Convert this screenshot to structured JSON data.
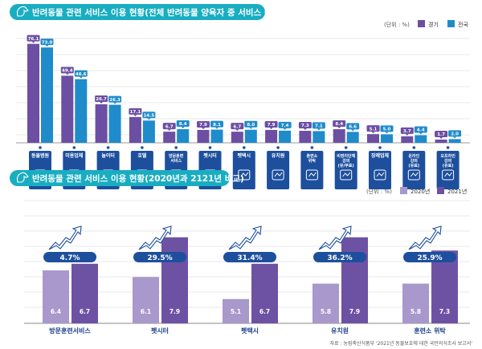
{
  "colors": {
    "title_pill": "#19adc1",
    "gyeonggi": "#6c4fa3",
    "national": "#1f8bcb",
    "y2020": "#a898cc",
    "y2021": "#6d52a4",
    "icon_box": "#1d4f9d",
    "pct_pill": "#1d4f9d"
  },
  "chart_data": [
    {
      "type": "bar",
      "title": "반려동물 관련 서비스 이용 현황(전체 반려동물 양육자 중 서비스 이용자 비율)",
      "unit": "(단위 : %)",
      "legend_position": "top-right",
      "grid": true,
      "categories": [
        "동물병원",
        "미용업체",
        "놀이터",
        "호텔",
        "방문훈련 서비스",
        "펫시터",
        "펫택시",
        "유치원",
        "훈련소 위탁",
        "비영리단체 강의 (유/무료)",
        "장례업체",
        "온라인 강의 (유료)",
        "오프라인 강의 (유료)"
      ],
      "icons": [
        "vet-dog-cross-icon",
        "grooming-dog-icon",
        "playground-dog-icon",
        "hotel-sleeping-dog-icon",
        "walking-trainer-icon",
        "pet-sitter-icon",
        "pet-taxi-icon",
        "kindergarten-dogs-icon",
        "training-dog-icon",
        "lecture-document-icon",
        "funeral-house-icon",
        "online-lecture-icon",
        "offline-lecture-icon"
      ],
      "series": [
        {
          "name": "경기",
          "values": [
            76.1,
            49.4,
            26.7,
            17.1,
            6.7,
            7.9,
            6.7,
            7.9,
            7.3,
            8.4,
            5.1,
            3.7,
            1.7
          ]
        },
        {
          "name": "전국",
          "values": [
            73.0,
            46.6,
            26.3,
            14.5,
            8.4,
            8.1,
            8.0,
            7.4,
            7.1,
            6.6,
            5.0,
            4.4,
            2.0
          ]
        }
      ]
    },
    {
      "type": "bar",
      "title": "반려동물 관련 서비스 이용 현황(2020년과 2121년 비교)",
      "unit": "(단위 : %)",
      "legend_position": "top-right",
      "grid": true,
      "categories": [
        "방문훈련서비스",
        "펫시터",
        "펫택시",
        "유치원",
        "훈련소 위탁"
      ],
      "series": [
        {
          "name": "2020년",
          "values": [
            6.4,
            6.1,
            5.1,
            5.8,
            5.8
          ]
        },
        {
          "name": "2021년",
          "values": [
            6.7,
            7.9,
            6.7,
            7.9,
            7.3
          ]
        }
      ],
      "growth_labels": [
        "4.7%",
        "29.5%",
        "31.4%",
        "36.2%",
        "25.9%"
      ],
      "ylim": [
        4,
        8.5
      ]
    }
  ],
  "source": "자료 : 농림축산식품부 '2021년 동물보호에 대한 국민의식조사 보고서'"
}
